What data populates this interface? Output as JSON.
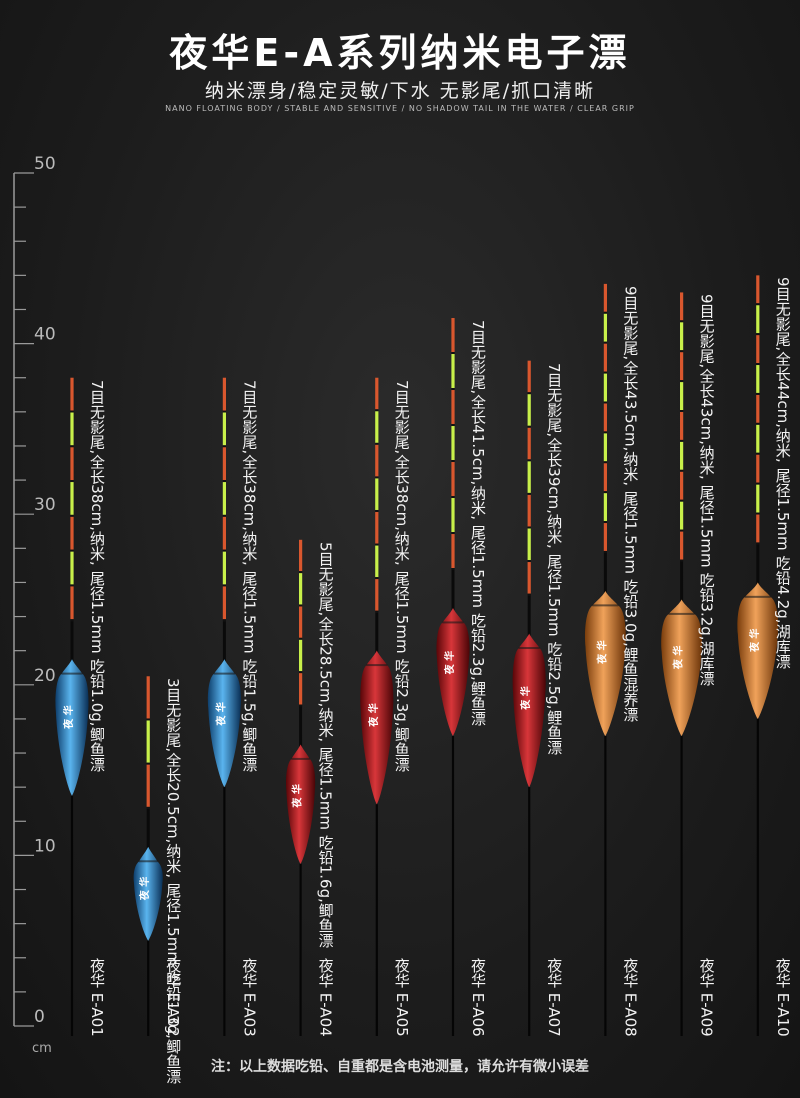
{
  "header": {
    "title": "夜华E-A系列纳米电子漂",
    "subtitle": "纳米漂身/稳定灵敏/下水 无影尾/抓口清晰",
    "subtitle_en": "NANO FLOATING BODY / STABLE AND SENSITIVE / NO SHADOW TAIL IN THE WATER / CLEAR GRIP"
  },
  "ruler": {
    "unit": "cm",
    "labels": [
      "0",
      "10",
      "20",
      "30",
      "40",
      "50"
    ]
  },
  "body_text": "夜 华",
  "colors": {
    "blue": "#2f86c8",
    "red": "#b0181c",
    "orange": "#d8822f",
    "tip_orange": "#d9572e",
    "tip_green": "#c8f04a"
  },
  "floats": [
    {
      "name": "夜华 E-A01",
      "desc": "7目无影尾,全长38cm,纳米, 尾径1.5mm 吃铅1.0g,鲫鱼漂",
      "color": "blue",
      "length_cm": 38,
      "body_top_cm": 21.5,
      "body_bottom_cm": 13.5,
      "segments": 7
    },
    {
      "name": "夜华 E-A02",
      "desc": "3目无影尾,全长20.5cm,纳米, 尾径1.5mm 吃铅1.3g,鲫鱼漂",
      "color": "blue",
      "length_cm": 20.5,
      "body_top_cm": 10.5,
      "body_bottom_cm": 5,
      "segments": 3
    },
    {
      "name": "夜华 E-A03",
      "desc": "7目无影尾,全长38cm,纳米, 尾径1.5mm 吃铅1.5g,鲫鱼漂",
      "color": "blue",
      "length_cm": 38,
      "body_top_cm": 21.5,
      "body_bottom_cm": 14,
      "segments": 7
    },
    {
      "name": "夜华 E-A04",
      "desc": "5目无影尾,全长28.5cm,纳米, 尾径1.5mm 吃铅1.6g,鲫鱼漂",
      "color": "red",
      "length_cm": 28.5,
      "body_top_cm": 16.5,
      "body_bottom_cm": 9.5,
      "segments": 5
    },
    {
      "name": "夜华 E-A05",
      "desc": "7目无影尾,全长38cm,纳米, 尾径1.5mm 吃铅2.3g,鲫鱼漂",
      "color": "red",
      "length_cm": 38,
      "body_top_cm": 22,
      "body_bottom_cm": 13,
      "segments": 7
    },
    {
      "name": "夜华 E-A06",
      "desc": "7目无影尾,全长41.5cm,纳米, 尾径1.5mm 吃铅2.3g,鲤鱼漂",
      "color": "red",
      "length_cm": 41.5,
      "body_top_cm": 24.5,
      "body_bottom_cm": 17,
      "segments": 7
    },
    {
      "name": "夜华 E-A07",
      "desc": "7目无影尾,全长39cm,纳米, 尾径1.5mm 吃铅2.5g,鲤鱼漂",
      "color": "red",
      "length_cm": 39,
      "body_top_cm": 23,
      "body_bottom_cm": 14,
      "segments": 7
    },
    {
      "name": "夜华 E-A08",
      "desc": "9目无影尾,全长43.5cm,纳米, 尾径1.5mm 吃铅3.0g,鲤鱼混养漂",
      "color": "orange",
      "length_cm": 43.5,
      "body_top_cm": 25.5,
      "body_bottom_cm": 17,
      "segments": 9
    },
    {
      "name": "夜华 E-A09",
      "desc": "9目无影尾,全长43cm,纳米, 尾径1.5mm 吃铅3.2g,湖库漂",
      "color": "orange",
      "length_cm": 43,
      "body_top_cm": 25,
      "body_bottom_cm": 17,
      "segments": 9
    },
    {
      "name": "夜华 E-A10",
      "desc": "9目无影尾,全长44cm,纳米, 尾径1.5mm 吃铅4.2g,湖库漂",
      "color": "orange",
      "length_cm": 44,
      "body_top_cm": 26,
      "body_bottom_cm": 18,
      "segments": 9
    }
  ],
  "footer": {
    "note": "注：以上数据吃铅、自重都是含电池测量，请允许有微小误差"
  }
}
